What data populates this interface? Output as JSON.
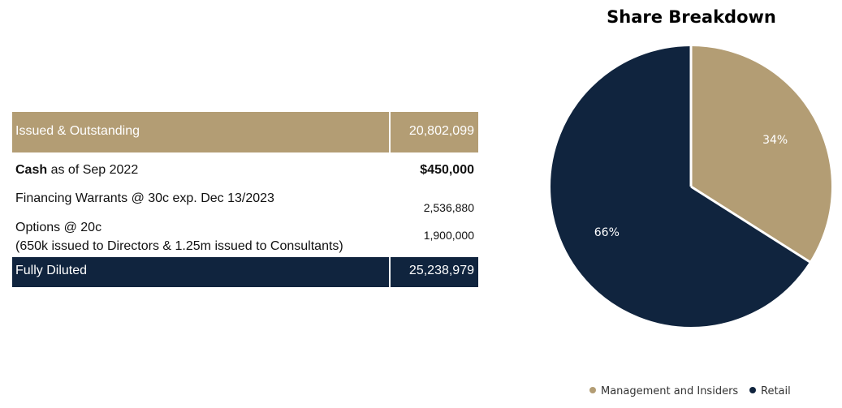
{
  "table": {
    "issued": {
      "label": "Issued & Outstanding",
      "value": "20,802,099"
    },
    "cash": {
      "label_bold": "Cash",
      "label_rest": " as of Sep 2022",
      "value": "$450,000"
    },
    "warrants": {
      "label": "Financing Warrants @ 30c exp. Dec 13/2023",
      "value": "2,536,880"
    },
    "options": {
      "line1": "Options @ 20c",
      "line2": "(650k issued to Directors & 1.25m issued to Consultants)",
      "value": "1,900,000"
    },
    "fully_diluted": {
      "label": "Fully Diluted",
      "value": "25,238,979"
    }
  },
  "colors": {
    "gold": "#b39d74",
    "navy": "#10243e"
  },
  "chart_data": {
    "type": "pie",
    "title": "Share Breakdown",
    "categories": [
      "Management and Insiders",
      "Retail"
    ],
    "values": [
      34,
      66
    ],
    "labels": [
      "34%",
      "66%"
    ],
    "colors": [
      "#b39d74",
      "#10243e"
    ],
    "legend_position": "bottom"
  }
}
